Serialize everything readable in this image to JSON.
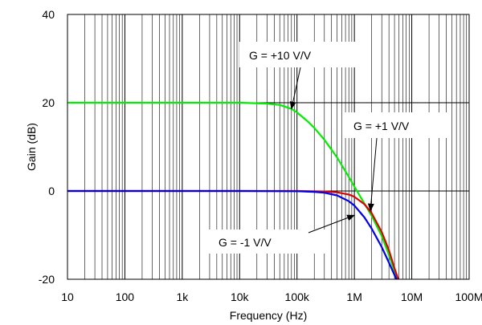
{
  "chart_data": {
    "type": "line",
    "title": "",
    "xlabel": "Frequency (Hz)",
    "ylabel": "Gain (dB)",
    "xscale": "log",
    "xlim": [
      10,
      100000000
    ],
    "ylim": [
      -20,
      40
    ],
    "grid": true,
    "x_ticks": [
      10,
      100,
      1000,
      10000,
      100000,
      1000000,
      10000000,
      100000000
    ],
    "x_tick_labels": [
      "10",
      "100",
      "1k",
      "10k",
      "100k",
      "1M",
      "10M",
      "100M"
    ],
    "y_ticks": [
      -20,
      0,
      20,
      40
    ],
    "y_tick_labels": [
      "-20",
      "0",
      "20",
      "40"
    ],
    "series": [
      {
        "color": "#00ee00",
        "x": [
          10,
          1000,
          10000,
          30000,
          50000,
          80000,
          100000,
          150000,
          200000,
          300000,
          500000,
          800000,
          1000000,
          2000000,
          3000000,
          4000000,
          5000000,
          5600000
        ],
        "y": [
          20,
          20,
          20,
          19.8,
          19.5,
          18.6,
          17.8,
          15.9,
          14.3,
          11.6,
          7.6,
          3.2,
          1.0,
          -5.6,
          -10.2,
          -14.5,
          -18.2,
          -20
        ]
      },
      {
        "color": "#dd0000",
        "x": [
          10,
          1000,
          10000,
          100000,
          300000,
          500000,
          800000,
          1000000,
          1500000,
          2000000,
          3000000,
          4000000,
          5000000,
          5800000
        ],
        "y": [
          0,
          0,
          0,
          0,
          -0.1,
          -0.3,
          -0.8,
          -1.3,
          -3.0,
          -5.0,
          -9.3,
          -13.4,
          -17.5,
          -20
        ]
      },
      {
        "color": "#0000ee",
        "x": [
          10,
          1000,
          10000,
          100000,
          200000,
          300000,
          500000,
          800000,
          1000000,
          1500000,
          2000000,
          3000000,
          4000000,
          5400000
        ],
        "y": [
          0,
          0,
          0,
          -0.05,
          -0.2,
          -0.4,
          -1.0,
          -2.3,
          -3.3,
          -6.0,
          -8.5,
          -12.7,
          -16.2,
          -20
        ]
      }
    ],
    "annotations": [
      {
        "text": "G = +10 V/V",
        "target_x": 80000,
        "target_y": 18.6
      },
      {
        "text": "G = +1 V/V",
        "target_x": 1900000,
        "target_y": -4.5
      },
      {
        "text": "G = -1 V/V",
        "target_x": 1000000,
        "target_y": -5.5
      }
    ]
  }
}
